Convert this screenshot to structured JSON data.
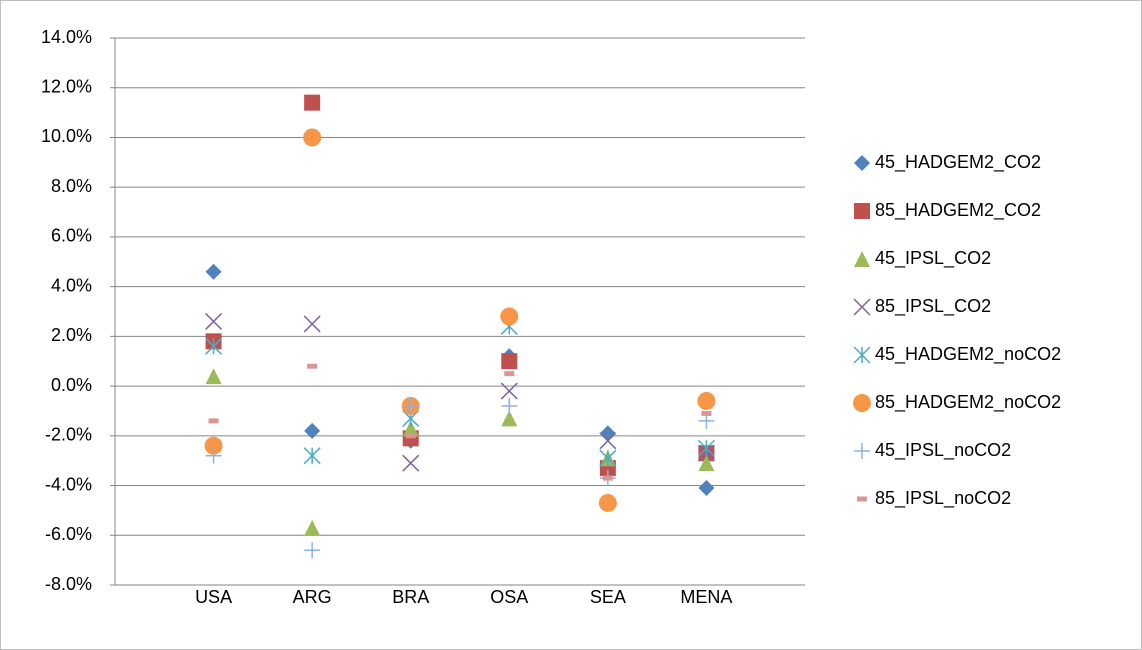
{
  "chart_data": {
    "type": "scatter",
    "categories": [
      "USA",
      "ARG",
      "BRA",
      "OSA",
      "SEA",
      "MENA"
    ],
    "ylim": [
      -8,
      14
    ],
    "yticks": [
      {
        "value": -8,
        "label": "-8.0%"
      },
      {
        "value": -6,
        "label": "-6.0%"
      },
      {
        "value": -4,
        "label": "-4.0%"
      },
      {
        "value": -2,
        "label": "-2.0%"
      },
      {
        "value": 0,
        "label": "0.0%"
      },
      {
        "value": 2,
        "label": "2.0%"
      },
      {
        "value": 4,
        "label": "4.0%"
      },
      {
        "value": 6,
        "label": "6.0%"
      },
      {
        "value": 8,
        "label": "8.0%"
      },
      {
        "value": 10,
        "label": "10.0%"
      },
      {
        "value": 12,
        "label": "12.0%"
      },
      {
        "value": 14,
        "label": "14.0%"
      }
    ],
    "grid": true,
    "legend": "right",
    "series": [
      {
        "name": "45_HADGEM2_CO2",
        "color": "#4f81bd",
        "marker": "diamond",
        "values": [
          4.6,
          -1.8,
          -2.2,
          1.2,
          -1.9,
          -4.1
        ]
      },
      {
        "name": "85_HADGEM2_CO2",
        "color": "#c0504d",
        "marker": "square",
        "values": [
          1.8,
          11.4,
          -2.1,
          1.0,
          -3.3,
          -2.7
        ]
      },
      {
        "name": "45_IPSL_CO2",
        "color": "#9bbb59",
        "marker": "triangle",
        "values": [
          0.4,
          -5.7,
          -1.7,
          -1.3,
          -2.9,
          -3.1
        ]
      },
      {
        "name": "85_IPSL_CO2",
        "color": "#8064a2",
        "marker": "x",
        "values": [
          2.6,
          2.5,
          -3.1,
          -0.2,
          -2.2,
          -2.7
        ]
      },
      {
        "name": "45_HADGEM2_noCO2",
        "color": "#4bacc6",
        "marker": "star",
        "values": [
          1.6,
          -2.8,
          -1.3,
          2.4,
          -2.9,
          -2.5
        ]
      },
      {
        "name": "85_HADGEM2_noCO2",
        "color": "#f79646",
        "marker": "circle",
        "values": [
          -2.4,
          10.0,
          -0.8,
          2.8,
          -4.7,
          -0.6
        ]
      },
      {
        "name": "45_IPSL_noCO2",
        "color": "#8db3e2",
        "marker": "plus",
        "values": [
          -2.8,
          -6.6,
          -0.8,
          -0.8,
          -3.7,
          -1.4
        ]
      },
      {
        "name": "85_IPSL_noCO2",
        "color": "#d99694",
        "marker": "dash",
        "values": [
          -1.4,
          0.8,
          -2.0,
          0.5,
          -3.7,
          -1.1
        ]
      }
    ]
  }
}
